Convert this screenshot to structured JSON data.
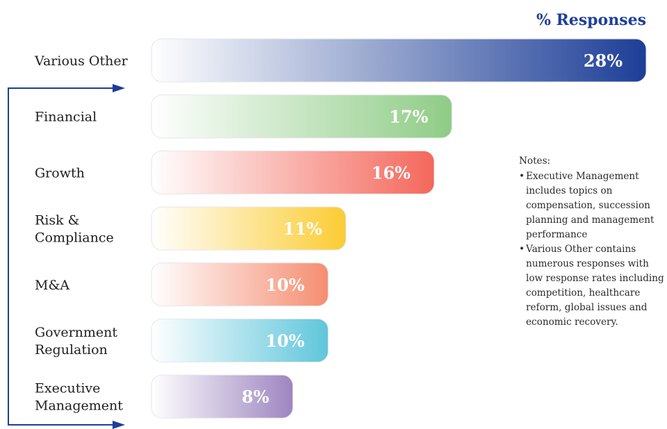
{
  "chart_data": {
    "type": "bar",
    "orientation": "horizontal",
    "title": "% Responses",
    "categories": [
      [
        "Various Other"
      ],
      [
        "Financial"
      ],
      [
        "Growth"
      ],
      [
        "Risk &",
        "Compliance"
      ],
      [
        "M&A"
      ],
      [
        "Government",
        "Regulation"
      ],
      [
        "Executive",
        "Management"
      ]
    ],
    "values": [
      28,
      17,
      16,
      11,
      10,
      10,
      8
    ],
    "value_labels": [
      "28%",
      "17%",
      "16%",
      "11%",
      "10%",
      "10%",
      "8%"
    ],
    "colors": [
      "#1d3e97",
      "#8fcc86",
      "#f4675b",
      "#fbcc33",
      "#f58d71",
      "#5fc6dc",
      "#9d85c0"
    ],
    "xlim": [
      0,
      28
    ],
    "grid": false,
    "legend": "none"
  },
  "notes": {
    "heading": "Notes:",
    "items": [
      "Executive Management includes topics on compensation, succession planning and management performance",
      "Various Other contains numerous responses with low response rates including competition, healthcare reform, global issues and economic recovery."
    ]
  },
  "arrow_color": "#1d3e97"
}
